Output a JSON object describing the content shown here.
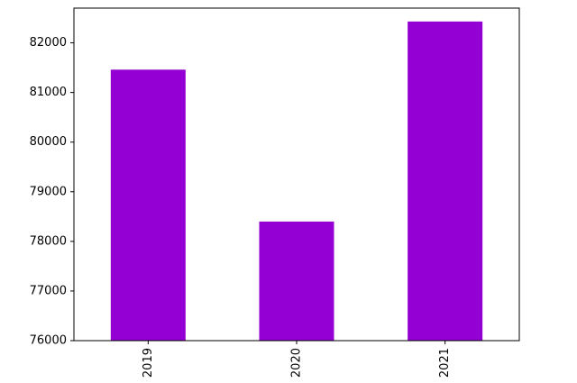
{
  "chart_data": {
    "type": "bar",
    "categories": [
      "2019",
      "2020",
      "2021"
    ],
    "values": [
      81460,
      78400,
      82430
    ],
    "title": "",
    "xlabel": "",
    "ylabel": "",
    "ylim": [
      76000,
      82700
    ],
    "yticks": [
      76000,
      77000,
      78000,
      79000,
      80000,
      81000,
      82000
    ],
    "xtick_rotation": 90,
    "bar_color": "#9400d3",
    "grid": false,
    "legend": "none"
  }
}
